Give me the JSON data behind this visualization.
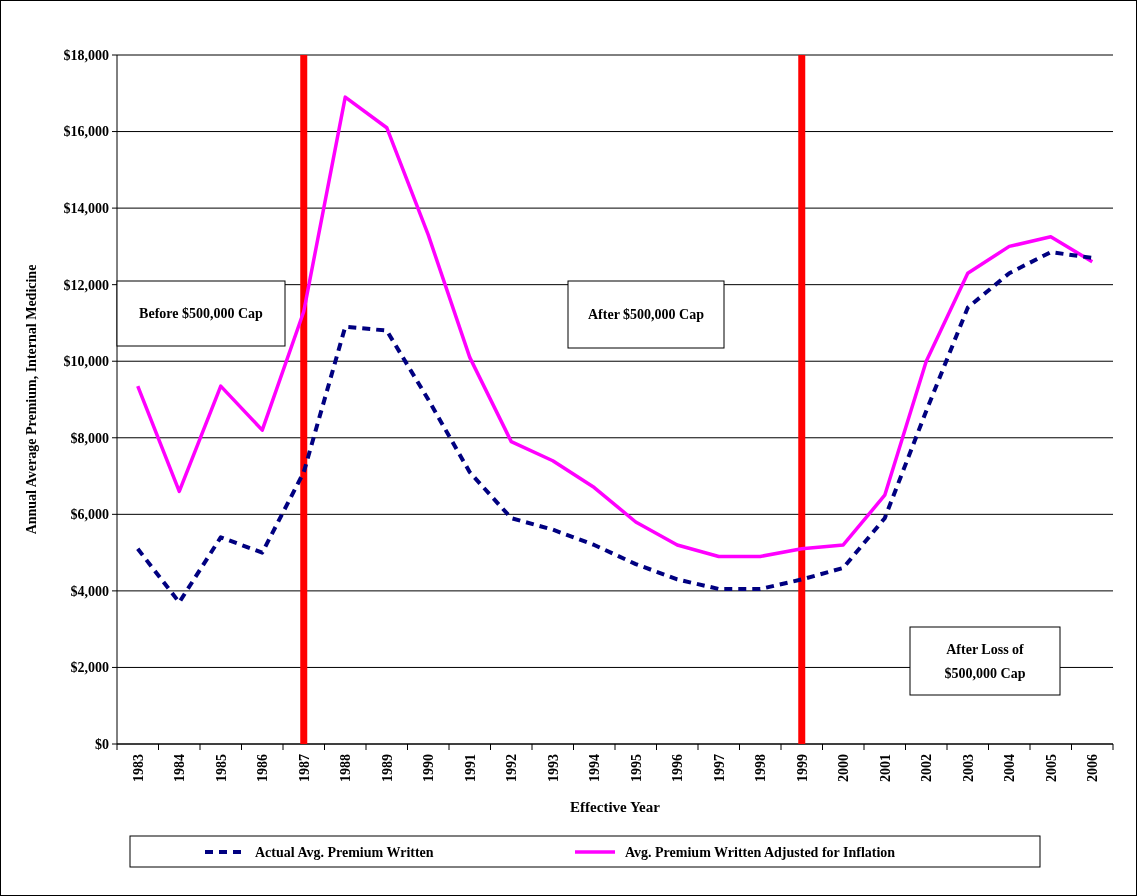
{
  "chart_data": {
    "type": "line",
    "xlabel": "Effective Year",
    "ylabel": "Annual Average Premium, Internal Medicine",
    "categories": [
      "1983",
      "1984",
      "1985",
      "1986",
      "1987",
      "1988",
      "1989",
      "1990",
      "1991",
      "1992",
      "1993",
      "1994",
      "1995",
      "1996",
      "1997",
      "1998",
      "1999",
      "2000",
      "2001",
      "2002",
      "2003",
      "2004",
      "2005",
      "2006"
    ],
    "series": [
      {
        "name": "Actual Avg. Premium Written",
        "color": "#000080",
        "line_style": "dashed",
        "values": [
          5100,
          3700,
          5400,
          5000,
          7100,
          10900,
          10800,
          9000,
          7100,
          5900,
          5600,
          5200,
          4700,
          4300,
          4050,
          4050,
          4300,
          4600,
          5900,
          8700,
          11400,
          12300,
          12850,
          12700
        ]
      },
      {
        "name": "Avg. Premium Written Adjusted for Inflation",
        "color": "#ff00ff",
        "line_style": "solid",
        "values": [
          9350,
          6600,
          9350,
          8200,
          11300,
          16900,
          16100,
          13300,
          10100,
          7900,
          7400,
          6700,
          5800,
          5200,
          4900,
          4900,
          5100,
          5200,
          6500,
          10000,
          12300,
          13000,
          13250,
          12600
        ]
      }
    ],
    "ylim": [
      0,
      18000
    ],
    "yticks": [
      {
        "value": 0,
        "label": "$0"
      },
      {
        "value": 2000,
        "label": "$2,000"
      },
      {
        "value": 4000,
        "label": "$4,000"
      },
      {
        "value": 6000,
        "label": "$6,000"
      },
      {
        "value": 8000,
        "label": "$8,000"
      },
      {
        "value": 10000,
        "label": "$10,000"
      },
      {
        "value": 12000,
        "label": "$12,000"
      },
      {
        "value": 14000,
        "label": "$14,000"
      },
      {
        "value": 16000,
        "label": "$16,000"
      },
      {
        "value": 18000,
        "label": "$18,000"
      }
    ],
    "grid": "y",
    "legend": "bottom",
    "marker": "none",
    "ref_lines": [
      {
        "axis": "x",
        "value": "1987",
        "color": "#ff0000"
      },
      {
        "axis": "x",
        "value": "1999",
        "color": "#ff0000"
      }
    ],
    "annotations": [
      "Before $500,000 Cap",
      "After $500,000 Cap",
      "After Loss of\n$500,000 Cap"
    ]
  }
}
